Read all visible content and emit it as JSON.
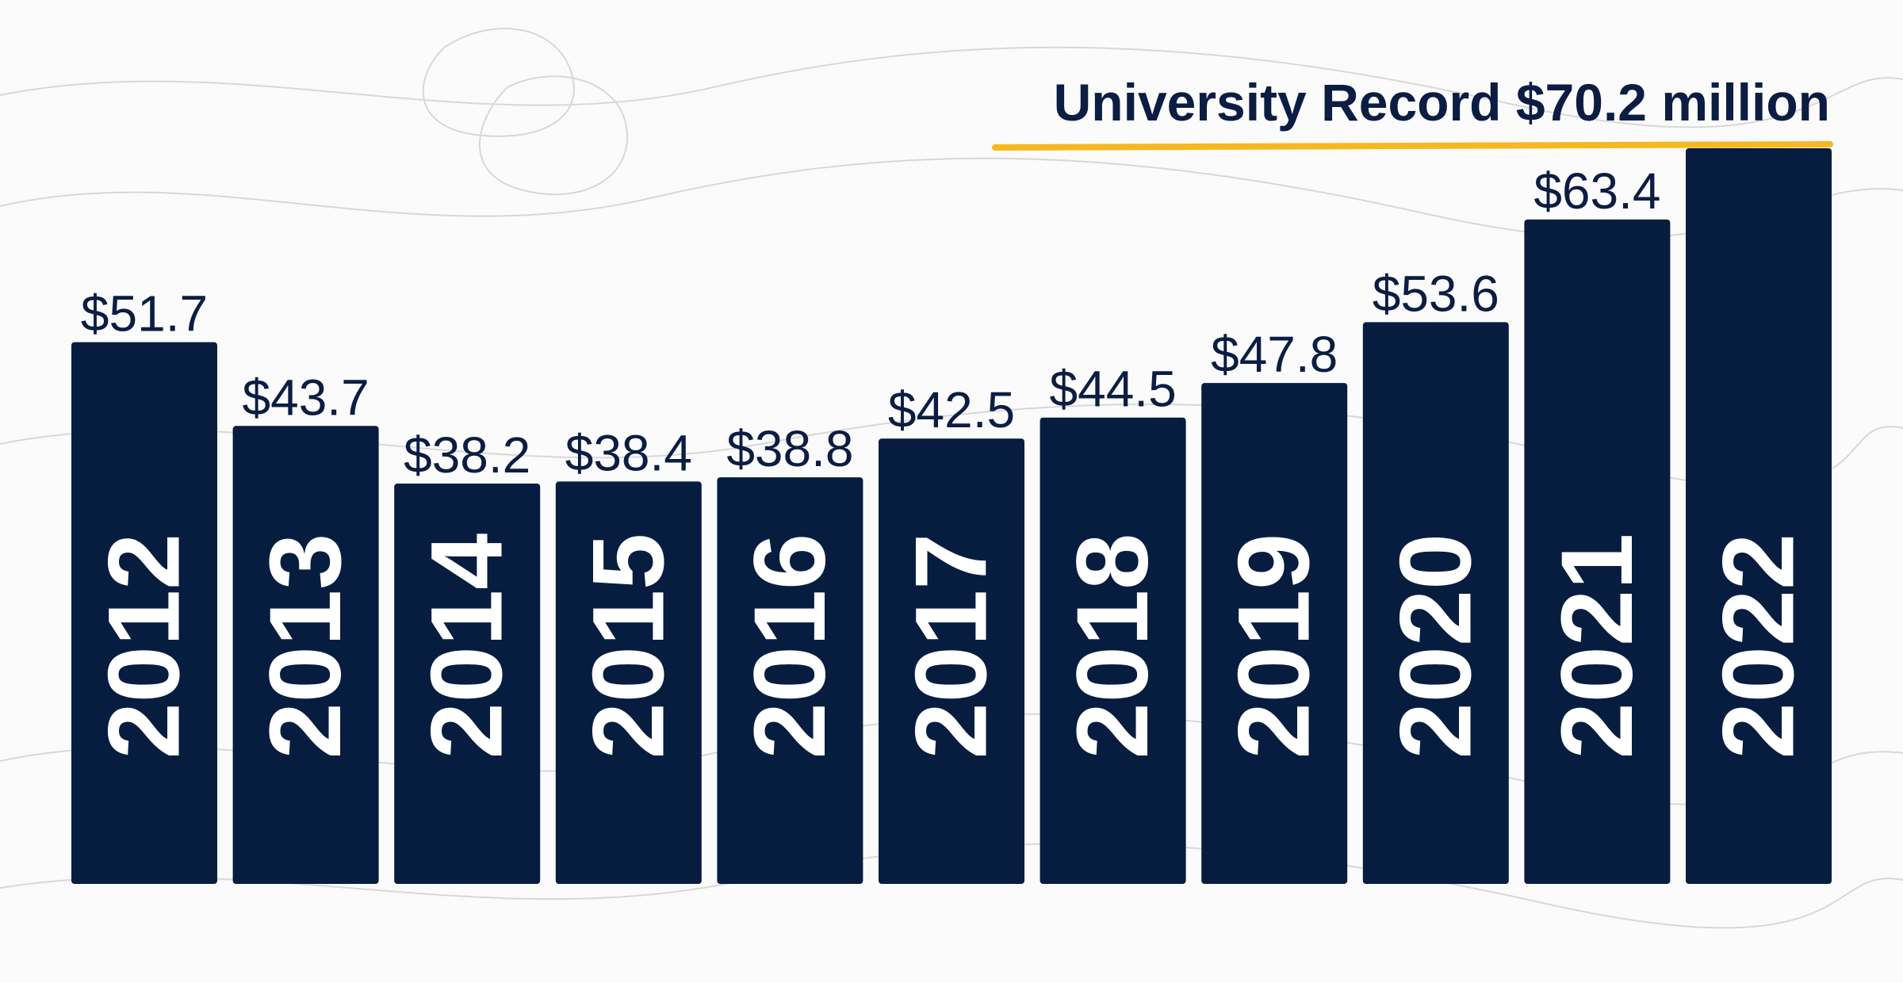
{
  "chart_data": {
    "type": "bar",
    "title": "University Record $70.2 million",
    "categories": [
      "2012",
      "2013",
      "2014",
      "2015",
      "2016",
      "2017",
      "2018",
      "2019",
      "2020",
      "2021",
      "2022"
    ],
    "values": [
      51.7,
      43.7,
      38.2,
      38.4,
      38.8,
      42.5,
      44.5,
      47.8,
      53.6,
      63.4,
      70.2
    ],
    "value_labels": [
      "$51.7",
      "$43.7",
      "$38.2",
      "$38.4",
      "$38.8",
      "$42.5",
      "$44.5",
      "$47.8",
      "$53.6",
      "$63.4",
      ""
    ],
    "xlabel": "",
    "ylabel": "",
    "grid": false,
    "legend": "none",
    "colors": {
      "bar": "#071d40",
      "year_text": "#ffffff",
      "value_text": "#0b1d42",
      "title_text": "#0b1d42",
      "record_underline": "#f5b820",
      "background": "#fbfbfb",
      "contour": "#d8d8d8"
    }
  }
}
